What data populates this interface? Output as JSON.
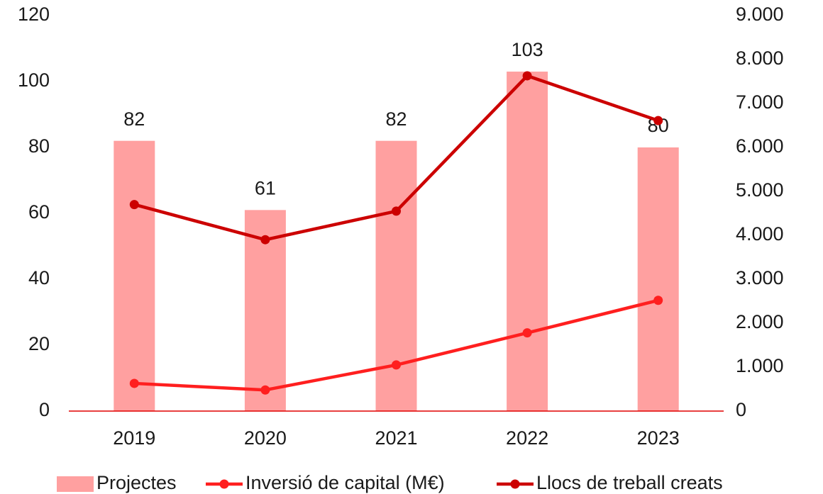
{
  "chart_data": {
    "type": "bar",
    "categories": [
      "2019",
      "2020",
      "2021",
      "2022",
      "2023"
    ],
    "series": [
      {
        "name": "Projectes",
        "type": "bar",
        "color": "#ffa0a0",
        "values": [
          82,
          61,
          82,
          103,
          80
        ]
      },
      {
        "name": "Inversió de capital (M€)",
        "type": "line",
        "axis": "y2",
        "color": "#ff1f1f",
        "values": [
          630,
          480,
          1050,
          1780,
          2520
        ]
      },
      {
        "name": "Llocs de treball creats",
        "type": "line",
        "axis": "y2",
        "color": "#cc0000",
        "values": [
          4700,
          3900,
          4550,
          7630,
          6610
        ]
      }
    ],
    "ylim": [
      0,
      120
    ],
    "yticks": [
      0,
      20,
      40,
      60,
      80,
      100,
      120
    ],
    "y2lim": [
      0,
      9000
    ],
    "y2ticks": [
      0,
      {
        "value": 1000,
        "label": "1.000"
      },
      {
        "value": 2000,
        "label": "2.000"
      },
      {
        "value": 3000,
        "label": "3.000"
      },
      {
        "value": 4000,
        "label": "4.000"
      },
      {
        "value": 5000,
        "label": "5.000"
      },
      {
        "value": 6000,
        "label": "6.000"
      },
      {
        "value": 7000,
        "label": "7.000"
      },
      {
        "value": 8000,
        "label": "8.000"
      },
      {
        "value": 9000,
        "label": "9.000"
      }
    ],
    "grid": false,
    "legend": "bottom"
  }
}
